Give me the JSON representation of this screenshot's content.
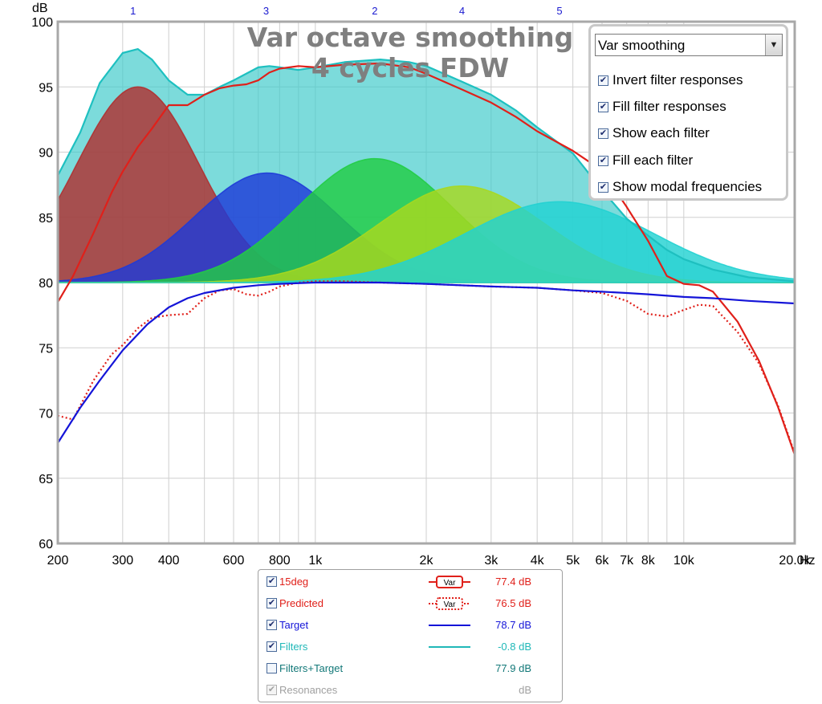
{
  "chart_data": {
    "type": "line",
    "title": "Var octave smoothing",
    "subtitle": "4 cycles FDW",
    "xlabel": "Hz",
    "ylabel": "dB",
    "x_scale": "log",
    "xlim": [
      200,
      20000
    ],
    "ylim": [
      60,
      100
    ],
    "grid": true,
    "x_ticks": [
      200,
      300,
      400,
      600,
      800,
      1000,
      2000,
      3000,
      4000,
      5000,
      6000,
      7000,
      8000,
      10000,
      20000
    ],
    "x_tick_labels": [
      "200",
      "300",
      "400",
      "600",
      "800",
      "1k",
      "2k",
      "3k",
      "4k",
      "5k",
      "6k",
      "7k",
      "8k",
      "10k",
      "20.0k"
    ],
    "y_ticks": [
      60,
      65,
      70,
      75,
      80,
      85,
      90,
      95,
      100
    ],
    "y_tick_labels": [
      "60",
      "65",
      "70",
      "75",
      "80",
      "85",
      "90",
      "95",
      "100"
    ],
    "modal_markers": [
      {
        "label": "1",
        "x": 320
      },
      {
        "label": "3",
        "x": 735
      },
      {
        "label": "2",
        "x": 1450
      },
      {
        "label": "4",
        "x": 2500
      },
      {
        "label": "5",
        "x": 4600
      }
    ],
    "filters": [
      {
        "label": "1",
        "color": "#b03030",
        "peak_freq": 330,
        "peak_db": 95.0,
        "width_oct": 0.55
      },
      {
        "label": "3",
        "color": "#1e3ad8",
        "peak_freq": 740,
        "peak_db": 88.4,
        "width_oct": 0.65
      },
      {
        "label": "2",
        "color": "#22cc44",
        "peak_freq": 1450,
        "peak_db": 89.5,
        "width_oct": 0.7
      },
      {
        "label": "4",
        "color": "#a8d81e",
        "peak_freq": 2500,
        "peak_db": 87.4,
        "width_oct": 0.75
      },
      {
        "label": "5",
        "color": "#22d2d2",
        "peak_freq": 4600,
        "peak_db": 86.2,
        "width_oct": 0.85
      }
    ],
    "series": [
      {
        "name": "15deg",
        "color": "#e0201a",
        "style": "solid",
        "x": [
          200,
          220,
          250,
          280,
          300,
          330,
          360,
          400,
          450,
          500,
          550,
          600,
          650,
          700,
          750,
          800,
          900,
          1000,
          1200,
          1500,
          1800,
          2000,
          2500,
          3000,
          3500,
          4000,
          5000,
          6000,
          7000,
          8000,
          9000,
          10000,
          11000,
          12000,
          14000,
          16000,
          18000,
          20000
        ],
        "y": [
          78.5,
          80.5,
          83.8,
          86.9,
          88.5,
          90.4,
          91.8,
          93.6,
          93.6,
          94.4,
          94.9,
          95.1,
          95.2,
          95.5,
          96.1,
          96.4,
          96.6,
          96.5,
          96.7,
          96.8,
          96.5,
          96.0,
          94.8,
          93.8,
          92.7,
          91.6,
          90.1,
          88.6,
          85.8,
          83.2,
          80.5,
          79.9,
          79.8,
          79.3,
          77.0,
          74.0,
          70.5,
          66.8
        ]
      },
      {
        "name": "Predicted",
        "color": "#e0201a",
        "style": "dotted",
        "x": [
          200,
          220,
          250,
          280,
          300,
          330,
          360,
          400,
          450,
          500,
          550,
          600,
          650,
          700,
          750,
          800,
          900,
          1000,
          1200,
          1500,
          2000,
          3000,
          4000,
          5000,
          6000,
          7000,
          8000,
          9000,
          10000,
          11000,
          12000,
          14000,
          16000,
          18000,
          20000
        ],
        "y": [
          69.8,
          69.5,
          72.5,
          74.5,
          75.2,
          76.5,
          77.3,
          77.5,
          77.6,
          78.8,
          79.4,
          79.5,
          79.1,
          79.0,
          79.3,
          79.7,
          80.0,
          80.1,
          80.1,
          80.0,
          79.9,
          79.7,
          79.6,
          79.4,
          79.2,
          78.6,
          77.6,
          77.4,
          77.9,
          78.3,
          78.2,
          76.2,
          73.8,
          70.6,
          66.9
        ]
      },
      {
        "name": "Target",
        "color": "#1414d8",
        "style": "solid",
        "x": [
          200,
          230,
          260,
          300,
          350,
          400,
          450,
          500,
          600,
          700,
          800,
          1000,
          1500,
          2000,
          3000,
          4000,
          5000,
          6000,
          7000,
          8000,
          10000,
          12000,
          15000,
          20000
        ],
        "y": [
          67.7,
          70.4,
          72.5,
          74.8,
          76.8,
          78.1,
          78.8,
          79.2,
          79.6,
          79.8,
          79.9,
          80.0,
          80.0,
          79.9,
          79.7,
          79.6,
          79.4,
          79.3,
          79.2,
          79.1,
          78.9,
          78.8,
          78.6,
          78.4
        ]
      },
      {
        "name": "Filters",
        "color": "#1ec0c0",
        "style": "solid",
        "x": [
          200,
          230,
          260,
          300,
          330,
          360,
          400,
          450,
          500,
          550,
          600,
          700,
          750,
          800,
          900,
          1000,
          1200,
          1500,
          1800,
          2000,
          2500,
          3000,
          3500,
          4000,
          5000,
          6000,
          7000,
          8000,
          9000,
          10000,
          12000,
          15000,
          20000
        ],
        "y": [
          88.2,
          91.5,
          95.3,
          97.6,
          97.9,
          97.1,
          95.5,
          94.4,
          94.4,
          95.0,
          95.5,
          96.5,
          96.6,
          96.5,
          96.3,
          96.5,
          96.9,
          97.1,
          96.9,
          96.6,
          95.4,
          94.4,
          93.2,
          91.9,
          89.9,
          87.1,
          84.9,
          83.6,
          82.5,
          81.8,
          81.0,
          80.4,
          80.1
        ]
      }
    ]
  },
  "chart_title": "Var octave smoothing",
  "chart_subtitle": "4 cycles FDW",
  "y_unit": "dB",
  "x_unit": "Hz",
  "options": {
    "dropdown_value": "Var smoothing",
    "items": [
      {
        "label": "Invert filter responses",
        "checked": true
      },
      {
        "label": "Fill filter responses",
        "checked": true
      },
      {
        "label": "Show each filter",
        "checked": true
      },
      {
        "label": "Fill each filter",
        "checked": true
      },
      {
        "label": "Show modal frequencies",
        "checked": true
      }
    ]
  },
  "legend": {
    "rows": [
      {
        "name": "15deg",
        "checked": true,
        "swatch_text": "Var",
        "value": "77.4 dB",
        "color": "#e0201a",
        "value_color": "#e0201a"
      },
      {
        "name": "Predicted",
        "checked": true,
        "swatch_text": "Var",
        "value": "76.5 dB",
        "color": "#e0201a",
        "value_color": "#e0201a"
      },
      {
        "name": "Target",
        "checked": true,
        "swatch_text": "",
        "value": "78.7 dB",
        "color": "#1414d8",
        "value_color": "#1414d8"
      },
      {
        "name": "Filters",
        "checked": true,
        "swatch_text": "",
        "value": "-0.8 dB",
        "color": "#20b8b8",
        "value_color": "#20b8b8"
      },
      {
        "name": "Filters+Target",
        "checked": false,
        "swatch_text": "",
        "value": "77.9 dB",
        "color": "#127878",
        "value_color": "#127878"
      },
      {
        "name": "Resonances",
        "checked": true,
        "swatch_text": "",
        "value": "dB",
        "color": "#a0a0a0",
        "value_color": "#a0a0a0"
      }
    ]
  }
}
